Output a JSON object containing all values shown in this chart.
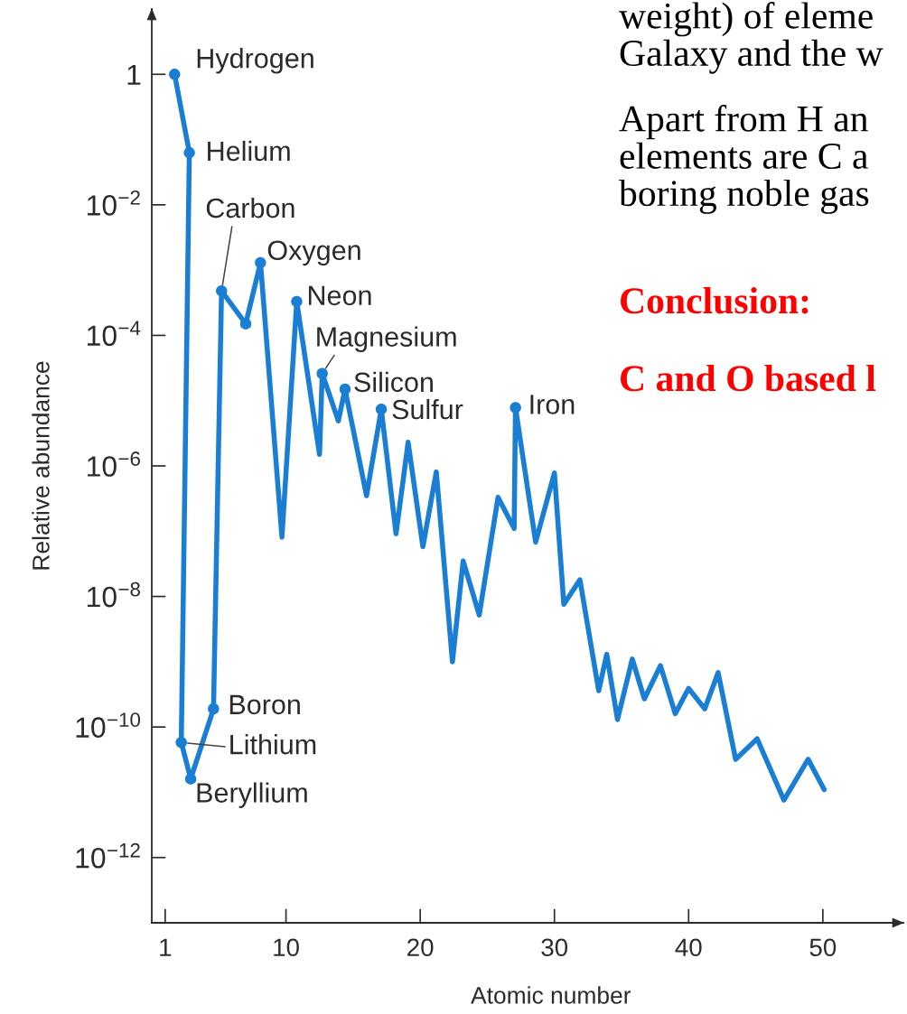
{
  "chart_data": {
    "type": "line",
    "xlabel": "Atomic number",
    "ylabel": "Relative abundance",
    "log": "y",
    "xlim": [
      0,
      56
    ],
    "xticks": [
      1,
      10,
      20,
      30,
      40,
      50
    ],
    "ylim": [
      1e-13,
      10
    ],
    "yticks": [
      1,
      {
        "value": 0.01,
        "label": "10$^{−2}$"
      },
      {
        "value": 0.0001,
        "label": "10$^{−4}$"
      },
      {
        "value": 1e-06,
        "label": "10$^{−6}$"
      },
      {
        "value": 1e-08,
        "label": "10$^{−8}$"
      },
      {
        "value": 1e-10,
        "label": "10$^{−10}$"
      },
      {
        "value": 1e-12,
        "label": "10$^{−12}$"
      }
    ],
    "series": [
      {
        "color": "#1a7fd4",
        "x": [
          1.7,
          2.8,
          2.2,
          2.9,
          4.6,
          5.2,
          7.0,
          8.1,
          9.7,
          10.8,
          12.5,
          12.7,
          13.9,
          14.4,
          16.0,
          17.1,
          18.2,
          19.1,
          20.2,
          21.2,
          22.4,
          23.2,
          24.4,
          25.8,
          27.0,
          27.1,
          28.6,
          30.0,
          30.7,
          31.9,
          33.3,
          33.9,
          34.7,
          35.8,
          36.7,
          37.9,
          39.0,
          40.0,
          41.2,
          42.2,
          43.5,
          45.1,
          47.1,
          48.9,
          50.1
        ],
        "values": [
          1,
          0.063,
          5.8e-11,
          1.6e-11,
          1.9e-10,
          0.00048,
          0.00015,
          0.0013,
          8.1e-08,
          0.00033,
          1.5e-06,
          2.6e-05,
          4.9e-06,
          1.5e-05,
          3.5e-07,
          7.4e-06,
          9.1e-08,
          2.3e-06,
          5.8e-08,
          8.1e-07,
          1e-09,
          3.5e-08,
          5.2e-09,
          3.3e-07,
          1.1e-07,
          7.8e-06,
          6.8e-08,
          7.8e-07,
          7.6e-09,
          1.8e-08,
          3.6e-10,
          1.3e-09,
          1.3e-10,
          1.1e-09,
          2.7e-10,
          8.7e-10,
          1.6e-10,
          3.9e-10,
          1.9e-10,
          6.8e-10,
          3.2e-11,
          6.6e-11,
          7.6e-12,
          3.2e-11,
          1.1e-11
        ]
      },
      {
        "type": "scatter",
        "color": "#1a7fd4",
        "marker": "circle",
        "x": [
          1.7,
          2.8,
          2.2,
          2.9,
          4.6,
          5.2,
          7.0,
          8.1,
          10.8,
          12.7,
          14.4,
          17.1,
          27.1
        ],
        "values": [
          1,
          0.063,
          5.8e-11,
          1.6e-11,
          1.9e-10,
          0.00048,
          0.00015,
          0.0013,
          0.00033,
          2.6e-05,
          1.5e-05,
          7.4e-06,
          7.8e-06
        ]
      }
    ],
    "annotations": [
      {
        "text": "Hydrogen",
        "x": 1.7,
        "y": 1
      },
      {
        "text": "Helium",
        "x": 2.8,
        "y": 0.063
      },
      {
        "text": "Lithium",
        "x": 2.2,
        "y": 5.8e-11
      },
      {
        "text": "Beryllium",
        "x": 2.9,
        "y": 1.6e-11
      },
      {
        "text": "Boron",
        "x": 4.6,
        "y": 1.9e-10
      },
      {
        "text": "Carbon",
        "x": 5.2,
        "y": 0.00048
      },
      {
        "text": "Oxygen",
        "x": 8.1,
        "y": 0.0013
      },
      {
        "text": "Neon",
        "x": 10.8,
        "y": 0.00033
      },
      {
        "text": "Magnesium",
        "x": 12.7,
        "y": 2.6e-05
      },
      {
        "text": "Silicon",
        "x": 14.4,
        "y": 1.5e-05
      },
      {
        "text": "Sulfur",
        "x": 17.1,
        "y": 7.4e-06
      },
      {
        "text": "Iron",
        "x": 27.1,
        "y": 7.8e-06
      },
      "weight) of eleme\nGalaxy and the w",
      "Apart from H an\nelements are C a\nboring noble gas",
      "Conclusion:",
      "C and O based l"
    ]
  }
}
